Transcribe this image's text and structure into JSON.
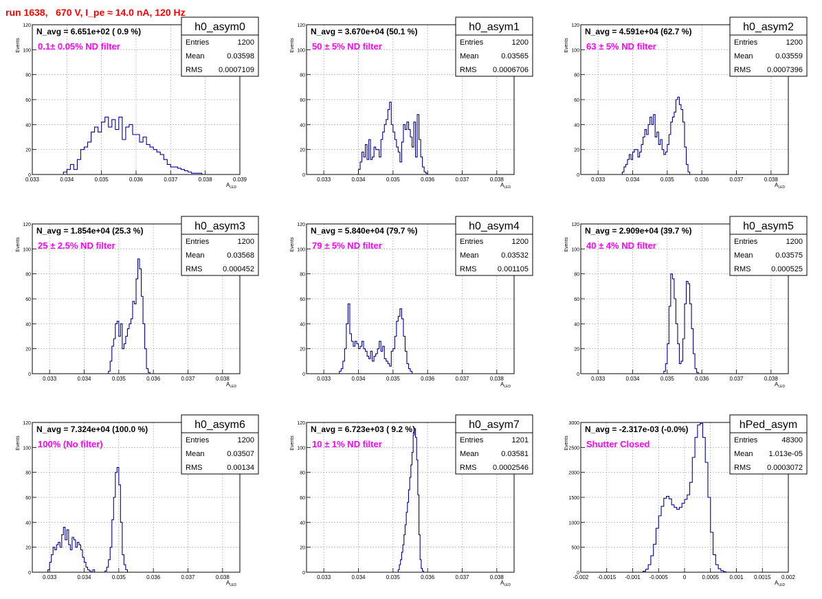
{
  "page": {
    "title": "run 1638,   670 V, I_pe ≈ 14.0 nA, 120 Hz"
  },
  "colors": {
    "title": "#ff0000",
    "histogram_line": "#000099",
    "annotation": "#ff00ff",
    "grid": "#b4b4b4",
    "axis": "#000000"
  },
  "chart_data": [
    {
      "type": "histogram",
      "hist_name": "h0_asym0",
      "stats": {
        "labels": [
          "Entries",
          "Mean",
          "RMS"
        ],
        "values": [
          "1200",
          "0.03598",
          "0.0007109"
        ]
      },
      "navg": "N_avg = 6.651e+02 ( 0.9 %)",
      "annotation": "0.1± 0.05% ND filter",
      "ylabel": "Events",
      "xlabel": "A",
      "xlabel_sub": "LED",
      "xlim": [
        0.033,
        0.039
      ],
      "ylim": [
        0,
        120
      ],
      "xticks": [
        0.033,
        0.034,
        0.035,
        0.036,
        0.037,
        0.038,
        0.039
      ],
      "xtick_labels": [
        "0.033",
        "0.034",
        "0.035",
        "0.036",
        "0.037",
        "0.038",
        "0.039"
      ],
      "yticks": [
        0,
        20,
        40,
        60,
        80,
        100,
        120
      ],
      "ytick_labels": [
        "0",
        "20",
        "40",
        "60",
        "80",
        "100",
        "120"
      ],
      "grid": true,
      "legend": "top-right",
      "x_start": 0.0339,
      "bin_width": 0.0001,
      "counts": [
        2,
        4,
        8,
        4,
        12,
        20,
        22,
        26,
        34,
        38,
        34,
        42,
        46,
        38,
        44,
        36,
        46,
        28,
        38,
        40,
        32,
        32,
        26,
        30,
        24,
        22,
        20,
        18,
        16,
        12,
        8,
        6,
        6,
        5,
        4,
        3,
        2,
        1,
        1,
        1
      ]
    },
    {
      "type": "histogram",
      "hist_name": "h0_asym1",
      "stats": {
        "labels": [
          "Entries",
          "Mean",
          "RMS"
        ],
        "values": [
          "1200",
          "0.03565",
          "0.0006706"
        ]
      },
      "navg": "N_avg = 3.670e+04 (50.1 %)",
      "annotation": "50 ± 5% ND filter",
      "ylabel": "Events",
      "xlabel": "A",
      "xlabel_sub": "LED",
      "xlim": [
        0.0325,
        0.0385
      ],
      "ylim": [
        0,
        120
      ],
      "xticks": [
        0.033,
        0.034,
        0.035,
        0.036,
        0.037,
        0.038
      ],
      "xtick_labels": [
        "0.033",
        "0.034",
        "0.035",
        "0.036",
        "0.037",
        "0.038"
      ],
      "yticks": [
        0,
        20,
        40,
        60,
        80,
        100,
        120
      ],
      "ytick_labels": [
        "0",
        "20",
        "40",
        "60",
        "80",
        "100",
        "120"
      ],
      "grid": true,
      "legend": "top-right",
      "x_start": 0.034,
      "bin_width": 5e-05,
      "counts": [
        4,
        10,
        18,
        14,
        24,
        12,
        28,
        12,
        14,
        22,
        20,
        20,
        14,
        28,
        34,
        40,
        44,
        52,
        58,
        40,
        34,
        28,
        22,
        18,
        10,
        26,
        40,
        36,
        42,
        36,
        30,
        22,
        42,
        14,
        48,
        28,
        14,
        6,
        2,
        1
      ]
    },
    {
      "type": "histogram",
      "hist_name": "h0_asym2",
      "stats": {
        "labels": [
          "Entries",
          "Mean",
          "RMS"
        ],
        "values": [
          "1200",
          "0.03559",
          "0.0007396"
        ]
      },
      "navg": "N_avg = 4.591e+04 (62.7 %)",
      "annotation": "63 ± 5% ND filter",
      "ylabel": "Events",
      "xlabel": "A",
      "xlabel_sub": "LED",
      "xlim": [
        0.0325,
        0.0385
      ],
      "ylim": [
        0,
        120
      ],
      "xticks": [
        0.033,
        0.034,
        0.035,
        0.036,
        0.037,
        0.038
      ],
      "xtick_labels": [
        "0.033",
        "0.034",
        "0.035",
        "0.036",
        "0.037",
        "0.038"
      ],
      "yticks": [
        0,
        20,
        40,
        60,
        80,
        100,
        120
      ],
      "ytick_labels": [
        "0",
        "20",
        "40",
        "60",
        "80",
        "100",
        "120"
      ],
      "grid": true,
      "legend": "top-right",
      "x_start": 0.0337,
      "bin_width": 5e-05,
      "counts": [
        2,
        6,
        8,
        12,
        16,
        12,
        18,
        20,
        20,
        14,
        18,
        24,
        30,
        36,
        32,
        40,
        46,
        40,
        48,
        30,
        34,
        24,
        28,
        20,
        16,
        18,
        24,
        32,
        42,
        46,
        50,
        60,
        62,
        56,
        52,
        42,
        22,
        8,
        2
      ]
    },
    {
      "type": "histogram",
      "hist_name": "h0_asym3",
      "stats": {
        "labels": [
          "Entries",
          "Mean",
          "RMS"
        ],
        "values": [
          "1200",
          "0.03568",
          "0.000452"
        ]
      },
      "navg": "N_avg = 1.854e+04 (25.3 %)",
      "annotation": "25 ± 2.5% ND filter",
      "ylabel": "Events",
      "xlabel": "A",
      "xlabel_sub": "LED",
      "xlim": [
        0.0325,
        0.0385
      ],
      "ylim": [
        0,
        120
      ],
      "xticks": [
        0.033,
        0.034,
        0.035,
        0.036,
        0.037,
        0.038
      ],
      "xtick_labels": [
        "0.033",
        "0.034",
        "0.035",
        "0.036",
        "0.037",
        "0.038"
      ],
      "yticks": [
        0,
        20,
        40,
        60,
        80,
        100,
        120
      ],
      "ytick_labels": [
        "0",
        "20",
        "40",
        "60",
        "80",
        "100",
        "120"
      ],
      "grid": true,
      "legend": "top-right",
      "x_start": 0.0347,
      "bin_width": 5e-05,
      "counts": [
        2,
        10,
        22,
        28,
        40,
        42,
        30,
        40,
        20,
        24,
        30,
        36,
        40,
        44,
        58,
        56,
        76,
        92,
        84,
        62,
        40,
        20,
        4,
        1
      ]
    },
    {
      "type": "histogram",
      "hist_name": "h0_asym4",
      "stats": {
        "labels": [
          "Entries",
          "Mean",
          "RMS"
        ],
        "values": [
          "1200",
          "0.03532",
          "0.001105"
        ]
      },
      "navg": "N_avg = 5.840e+04 (79.7 %)",
      "annotation": "79 ± 5% ND filter",
      "ylabel": "Events",
      "xlabel": "A",
      "xlabel_sub": "LED",
      "xlim": [
        0.0325,
        0.0385
      ],
      "ylim": [
        0,
        120
      ],
      "xticks": [
        0.033,
        0.034,
        0.035,
        0.036,
        0.037,
        0.038
      ],
      "xtick_labels": [
        "0.033",
        "0.034",
        "0.035",
        "0.036",
        "0.037",
        "0.038"
      ],
      "yticks": [
        0,
        20,
        40,
        60,
        80,
        100,
        120
      ],
      "ytick_labels": [
        "0",
        "20",
        "40",
        "60",
        "80",
        "100",
        "120"
      ],
      "grid": true,
      "legend": "top-right",
      "x_start": 0.03345,
      "bin_width": 5e-05,
      "counts": [
        2,
        4,
        10,
        20,
        40,
        56,
        32,
        26,
        22,
        26,
        24,
        20,
        22,
        26,
        20,
        18,
        14,
        12,
        18,
        10,
        14,
        16,
        20,
        26,
        18,
        22,
        12,
        10,
        8,
        6,
        18,
        20,
        30,
        42,
        46,
        52,
        44,
        30,
        18,
        8,
        4,
        2
      ]
    },
    {
      "type": "histogram",
      "hist_name": "h0_asym5",
      "stats": {
        "labels": [
          "Entries",
          "Mean",
          "RMS"
        ],
        "values": [
          "1200",
          "0.03575",
          "0.000525"
        ]
      },
      "navg": "N_avg = 2.909e+04 (39.7 %)",
      "annotation": "40 ± 4% ND filter",
      "ylabel": "Events",
      "xlabel": "A",
      "xlabel_sub": "LED",
      "xlim": [
        0.0325,
        0.0385
      ],
      "ylim": [
        0,
        120
      ],
      "xticks": [
        0.033,
        0.034,
        0.035,
        0.036,
        0.037,
        0.038
      ],
      "xtick_labels": [
        "0.033",
        "0.034",
        "0.035",
        "0.036",
        "0.037",
        "0.038"
      ],
      "yticks": [
        0,
        20,
        40,
        60,
        80,
        100,
        120
      ],
      "ytick_labels": [
        "0",
        "20",
        "40",
        "60",
        "80",
        "100",
        "120"
      ],
      "grid": true,
      "legend": "top-right",
      "x_start": 0.0349,
      "bin_width": 5e-05,
      "counts": [
        2,
        8,
        24,
        54,
        80,
        76,
        60,
        40,
        24,
        8,
        10,
        28,
        56,
        74,
        72,
        56,
        36,
        16,
        4,
        1
      ]
    },
    {
      "type": "histogram",
      "hist_name": "h0_asym6",
      "stats": {
        "labels": [
          "Entries",
          "Mean",
          "RMS"
        ],
        "values": [
          "1200",
          "0.03507",
          "0.00134"
        ]
      },
      "navg": "N_avg = 7.324e+04 (100.0 %)",
      "annotation": "100% (No filter)",
      "ylabel": "Events",
      "xlabel": "A",
      "xlabel_sub": "LED",
      "xlim": [
        0.0325,
        0.0385
      ],
      "ylim": [
        0,
        120
      ],
      "xticks": [
        0.033,
        0.034,
        0.035,
        0.036,
        0.037,
        0.038
      ],
      "xtick_labels": [
        "0.033",
        "0.034",
        "0.035",
        "0.036",
        "0.037",
        "0.038"
      ],
      "yticks": [
        0,
        20,
        40,
        60,
        80,
        100,
        120
      ],
      "ytick_labels": [
        "0",
        "20",
        "40",
        "60",
        "80",
        "100",
        "120"
      ],
      "grid": true,
      "legend": "top-right",
      "x_start": 0.03295,
      "bin_width": 5e-05,
      "counts": [
        2,
        8,
        14,
        20,
        18,
        22,
        24,
        20,
        30,
        36,
        26,
        34,
        22,
        18,
        28,
        26,
        20,
        24,
        22,
        18,
        12,
        8,
        4,
        2,
        1,
        0,
        2,
        0,
        0,
        0,
        0,
        0,
        0,
        1,
        4,
        10,
        20,
        42,
        60,
        80,
        84,
        70,
        40,
        14,
        6,
        2
      ]
    },
    {
      "type": "histogram",
      "hist_name": "h0_asym7",
      "stats": {
        "labels": [
          "Entries",
          "Mean",
          "RMS"
        ],
        "values": [
          "1201",
          "0.03581",
          "0.0002546"
        ]
      },
      "navg": "N_avg = 6.723e+03 ( 9.2 %)",
      "annotation": "10 ± 1% ND filter",
      "ylabel": "Events",
      "xlabel": "A",
      "xlabel_sub": "LED",
      "xlim": [
        0.0325,
        0.0385
      ],
      "ylim": [
        0,
        120
      ],
      "xticks": [
        0.033,
        0.034,
        0.035,
        0.036,
        0.037,
        0.038
      ],
      "xtick_labels": [
        "0.033",
        "0.034",
        "0.035",
        "0.036",
        "0.037",
        "0.038"
      ],
      "yticks": [
        0,
        20,
        40,
        60,
        80,
        100,
        120
      ],
      "ytick_labels": [
        "0",
        "20",
        "40",
        "60",
        "80",
        "100",
        "120"
      ],
      "grid": true,
      "legend": "top-right",
      "x_start": 0.03515,
      "bin_width": 3.33e-05,
      "counts": [
        2,
        6,
        10,
        16,
        22,
        30,
        38,
        48,
        56,
        66,
        76,
        86,
        96,
        110,
        115,
        108,
        90,
        62,
        30,
        10,
        3,
        1
      ]
    },
    {
      "type": "histogram",
      "hist_name": "hPed_asym",
      "stats": {
        "labels": [
          "Entries",
          "Mean",
          "RMS"
        ],
        "values": [
          "48300",
          "1.013e-05",
          "0.0003072"
        ]
      },
      "navg": "N_avg = -2.317e-03 (-0.0%)",
      "annotation": "Shutter Closed",
      "ylabel": "Events",
      "xlabel": "A",
      "xlabel_sub": "LED",
      "xlim": [
        -0.002,
        0.002
      ],
      "ylim": [
        0,
        3000
      ],
      "xticks": [
        -0.002,
        -0.0015,
        -0.001,
        -0.0005,
        0,
        0.0005,
        0.001,
        0.0015,
        0.002
      ],
      "xtick_labels": [
        "-0.002",
        "-0.0015",
        "-0.001",
        "-0.0005",
        "0",
        "0.0005",
        "0.001",
        "0.0015",
        "0.002"
      ],
      "yticks": [
        0,
        500,
        1000,
        1500,
        2000,
        2500,
        3000
      ],
      "ytick_labels": [
        "0",
        "500",
        "1000",
        "1500",
        "2000",
        "2500",
        "3000"
      ],
      "grid": true,
      "legend": "top-right",
      "x_start": -0.0008,
      "bin_width": 5e-05,
      "counts": [
        20,
        60,
        150,
        330,
        560,
        880,
        1130,
        1320,
        1480,
        1520,
        1470,
        1350,
        1300,
        1260,
        1300,
        1380,
        1460,
        1550,
        1800,
        2300,
        2700,
        2950,
        2980,
        2700,
        2200,
        1500,
        800,
        350,
        150,
        70,
        30,
        10
      ]
    }
  ]
}
